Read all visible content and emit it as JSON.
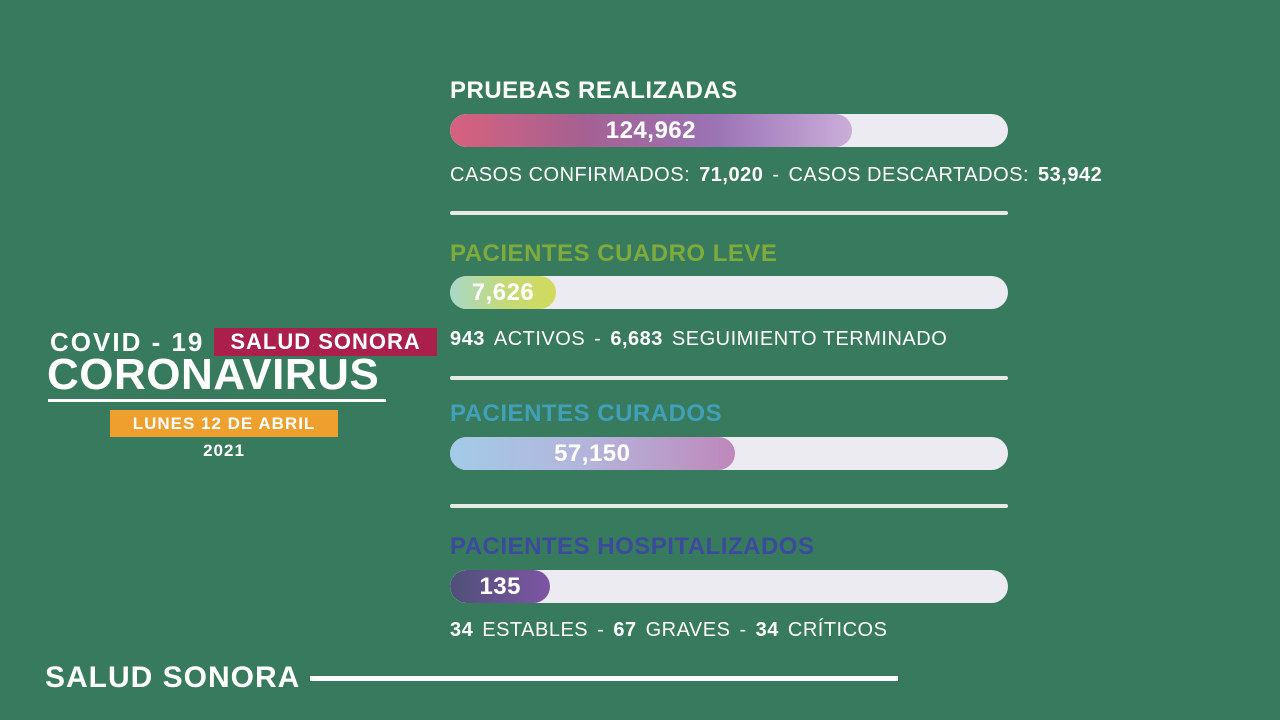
{
  "page": {
    "background": "#377A5D"
  },
  "brand": {
    "covid_label": "COVID - 19",
    "agency_badge": "SALUD SONORA",
    "badge_color": "#AB1F4D",
    "title": "CORONAVIRUS",
    "date_badge": "LUNES 12 DE ABRIL 2021",
    "date_badge_color": "#EE9F2E"
  },
  "sections": [
    {
      "title": "PRUEBAS REALIZADAS",
      "title_color": "#FFFFFF",
      "value": "124,962",
      "bar": {
        "fill_percent": 72,
        "gradient": [
          "#D7617E",
          "#A56192",
          "#9B74B6",
          "#CBADD9"
        ],
        "track": "#ECEBF1"
      },
      "stats": [
        {
          "t": "CASOS CONFIRMADOS:",
          "b": false
        },
        {
          "t": "71,020",
          "b": true
        },
        {
          "t": "-",
          "b": false
        },
        {
          "t": "CASOS DESCARTADOS:",
          "b": false
        },
        {
          "t": "53,942",
          "b": true
        }
      ]
    },
    {
      "title": "PACIENTES CUADRO LEVE",
      "title_color": "#7FAA3C",
      "value": "7,626",
      "bar": {
        "fill_percent": 19,
        "gradient": [
          "#A9D8C9",
          "#C3DA7A",
          "#D2DA5C"
        ],
        "track": "#ECEBF1"
      },
      "stats": [
        {
          "t": "943",
          "b": true
        },
        {
          "t": "ACTIVOS",
          "b": false
        },
        {
          "t": "-",
          "b": false
        },
        {
          "t": "6,683",
          "b": true
        },
        {
          "t": "SEGUIMIENTO TERMINADO",
          "b": false
        }
      ]
    },
    {
      "title": "PACIENTES CURADOS",
      "title_color": "#41A0B8",
      "value": "57,150",
      "bar": {
        "fill_percent": 51,
        "gradient": [
          "#A3CBE8",
          "#B4B3DB",
          "#BE88BA"
        ],
        "track": "#ECEBF1"
      },
      "stats": []
    },
    {
      "title": "PACIENTES HOSPITALIZADOS",
      "title_color": "#3C4A9E",
      "value": "135",
      "bar": {
        "fill_percent": 18,
        "gradient": [
          "#4F5078",
          "#7E55A4"
        ],
        "track": "#ECEBF1"
      },
      "stats": [
        {
          "t": "34",
          "b": true
        },
        {
          "t": "ESTABLES",
          "b": false
        },
        {
          "t": "-",
          "b": false
        },
        {
          "t": "67",
          "b": true
        },
        {
          "t": "GRAVES",
          "b": false
        },
        {
          "t": "-",
          "b": false
        },
        {
          "t": "34",
          "b": true
        },
        {
          "t": "CRÍTICOS",
          "b": false
        }
      ]
    }
  ],
  "footer": {
    "brand": "SALUD SONORA"
  },
  "chart_data": {
    "type": "bar",
    "title": "COVID-19 CORONAVIRUS — SALUD SONORA",
    "date": "LUNES 12 DE ABRIL 2021",
    "orientation": "horizontal",
    "categories": [
      "PRUEBAS REALIZADAS",
      "PACIENTES CUADRO LEVE",
      "PACIENTES CURADOS",
      "PACIENTES HOSPITALIZADOS"
    ],
    "values": [
      124962,
      7626,
      57150,
      135
    ],
    "bar_fill_percent_of_track": [
      72,
      19,
      51,
      18
    ],
    "breakdowns": [
      {
        "category": "PRUEBAS REALIZADAS",
        "items": {
          "CASOS CONFIRMADOS": 71020,
          "CASOS DESCARTADOS": 53942
        }
      },
      {
        "category": "PACIENTES CUADRO LEVE",
        "items": {
          "ACTIVOS": 943,
          "SEGUIMIENTO TERMINADO": 6683
        }
      },
      {
        "category": "PACIENTES HOSPITALIZADOS",
        "items": {
          "ESTABLES": 34,
          "GRAVES": 67,
          "CRÍTICOS": 34
        }
      }
    ],
    "legend": "none",
    "grid": false
  }
}
